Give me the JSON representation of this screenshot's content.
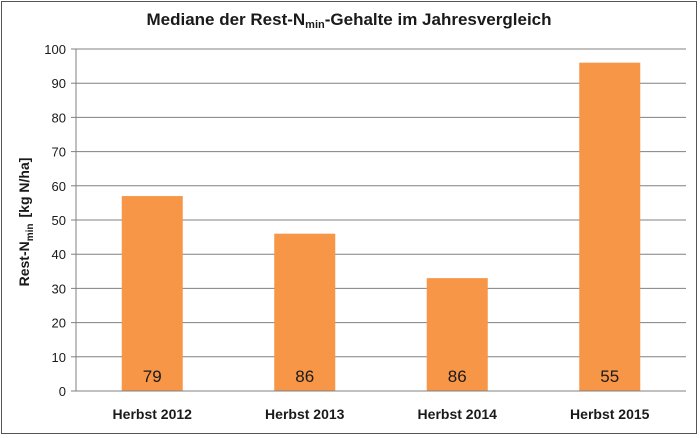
{
  "chart_data": {
    "type": "bar",
    "title_main": "Mediane der Rest-N",
    "title_sub": "min",
    "title_tail": "-Gehalte im Jahresvergleich",
    "ylabel_main": "Rest-N",
    "ylabel_sub": "min",
    "ylabel_unit": "[kg N/ha]",
    "categories": [
      "Herbst 2012",
      "Herbst 2013",
      "Herbst 2014",
      "Herbst 2015"
    ],
    "values": [
      57,
      46,
      33,
      96
    ],
    "bar_labels": [
      "79",
      "86",
      "86",
      "55"
    ],
    "ylim": [
      0,
      100
    ],
    "yticks": [
      0,
      10,
      20,
      30,
      40,
      50,
      60,
      70,
      80,
      90,
      100
    ],
    "grid": true,
    "bar_color": "#f79646",
    "grid_color": "#808080"
  }
}
